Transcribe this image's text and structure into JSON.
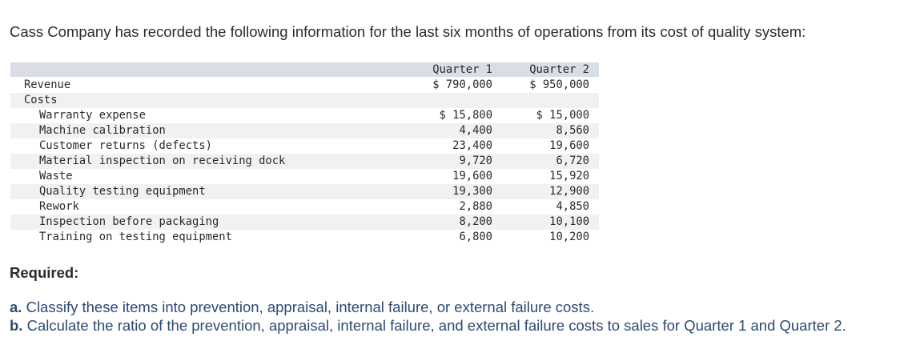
{
  "intro": "Cass Company has recorded the following information for the last six months of operations from its cost of quality system:",
  "table": {
    "headers": [
      "Quarter 1",
      "Quarter 2"
    ],
    "revenue": {
      "label": "Revenue",
      "q1": "$ 790,000",
      "q2": "$ 950,000"
    },
    "costs_label": "Costs",
    "items": [
      {
        "label": "Warranty expense",
        "q1": "$ 15,800",
        "q2": "$ 15,000"
      },
      {
        "label": "Machine calibration",
        "q1": "4,400",
        "q2": "8,560"
      },
      {
        "label": "Customer returns (defects)",
        "q1": "23,400",
        "q2": "19,600"
      },
      {
        "label": "Material inspection on receiving dock",
        "q1": "9,720",
        "q2": "6,720"
      },
      {
        "label": "Waste",
        "q1": "19,600",
        "q2": "15,920"
      },
      {
        "label": "Quality testing equipment",
        "q1": "19,300",
        "q2": "12,900"
      },
      {
        "label": "Rework",
        "q1": "2,880",
        "q2": "4,850"
      },
      {
        "label": "Inspection before packaging",
        "q1": "8,200",
        "q2": "10,100"
      },
      {
        "label": "Training on testing equipment",
        "q1": "6,800",
        "q2": "10,200"
      }
    ]
  },
  "required": {
    "heading": "Required:",
    "a_marker": "a.",
    "a_text": "Classify these items into prevention, appraisal, internal failure, or external failure costs.",
    "b_marker": "b.",
    "b_text": "Calculate the ratio of the prevention, appraisal, internal failure, and external failure costs to sales for Quarter 1 and Quarter 2."
  }
}
